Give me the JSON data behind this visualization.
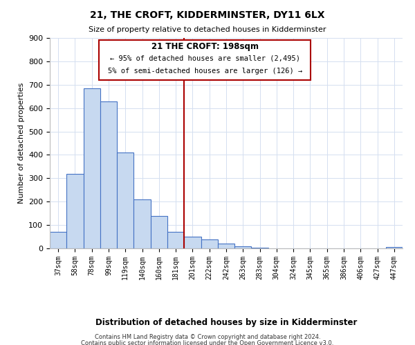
{
  "title": "21, THE CROFT, KIDDERMINSTER, DY11 6LX",
  "subtitle": "Size of property relative to detached houses in Kidderminster",
  "xlabel": "Distribution of detached houses by size in Kidderminster",
  "ylabel": "Number of detached properties",
  "bar_labels": [
    "37sqm",
    "58sqm",
    "78sqm",
    "99sqm",
    "119sqm",
    "140sqm",
    "160sqm",
    "181sqm",
    "201sqm",
    "222sqm",
    "242sqm",
    "263sqm",
    "283sqm",
    "304sqm",
    "324sqm",
    "345sqm",
    "365sqm",
    "386sqm",
    "406sqm",
    "427sqm",
    "447sqm"
  ],
  "bar_heights": [
    72,
    320,
    685,
    628,
    410,
    210,
    140,
    70,
    50,
    37,
    22,
    10,
    2,
    0,
    0,
    0,
    0,
    0,
    0,
    0,
    7
  ],
  "bar_color": "#c7d9f0",
  "bar_edge_color": "#4472c4",
  "vline_x_idx": 8,
  "vline_color": "#aa0000",
  "ylim": [
    0,
    900
  ],
  "yticks": [
    0,
    100,
    200,
    300,
    400,
    500,
    600,
    700,
    800,
    900
  ],
  "annotation_title": "21 THE CROFT: 198sqm",
  "annotation_line1": "← 95% of detached houses are smaller (2,495)",
  "annotation_line2": "5% of semi-detached houses are larger (126) →",
  "footer_line1": "Contains HM Land Registry data © Crown copyright and database right 2024.",
  "footer_line2": "Contains public sector information licensed under the Open Government Licence v3.0.",
  "background_color": "#ffffff",
  "grid_color": "#d4dff0"
}
